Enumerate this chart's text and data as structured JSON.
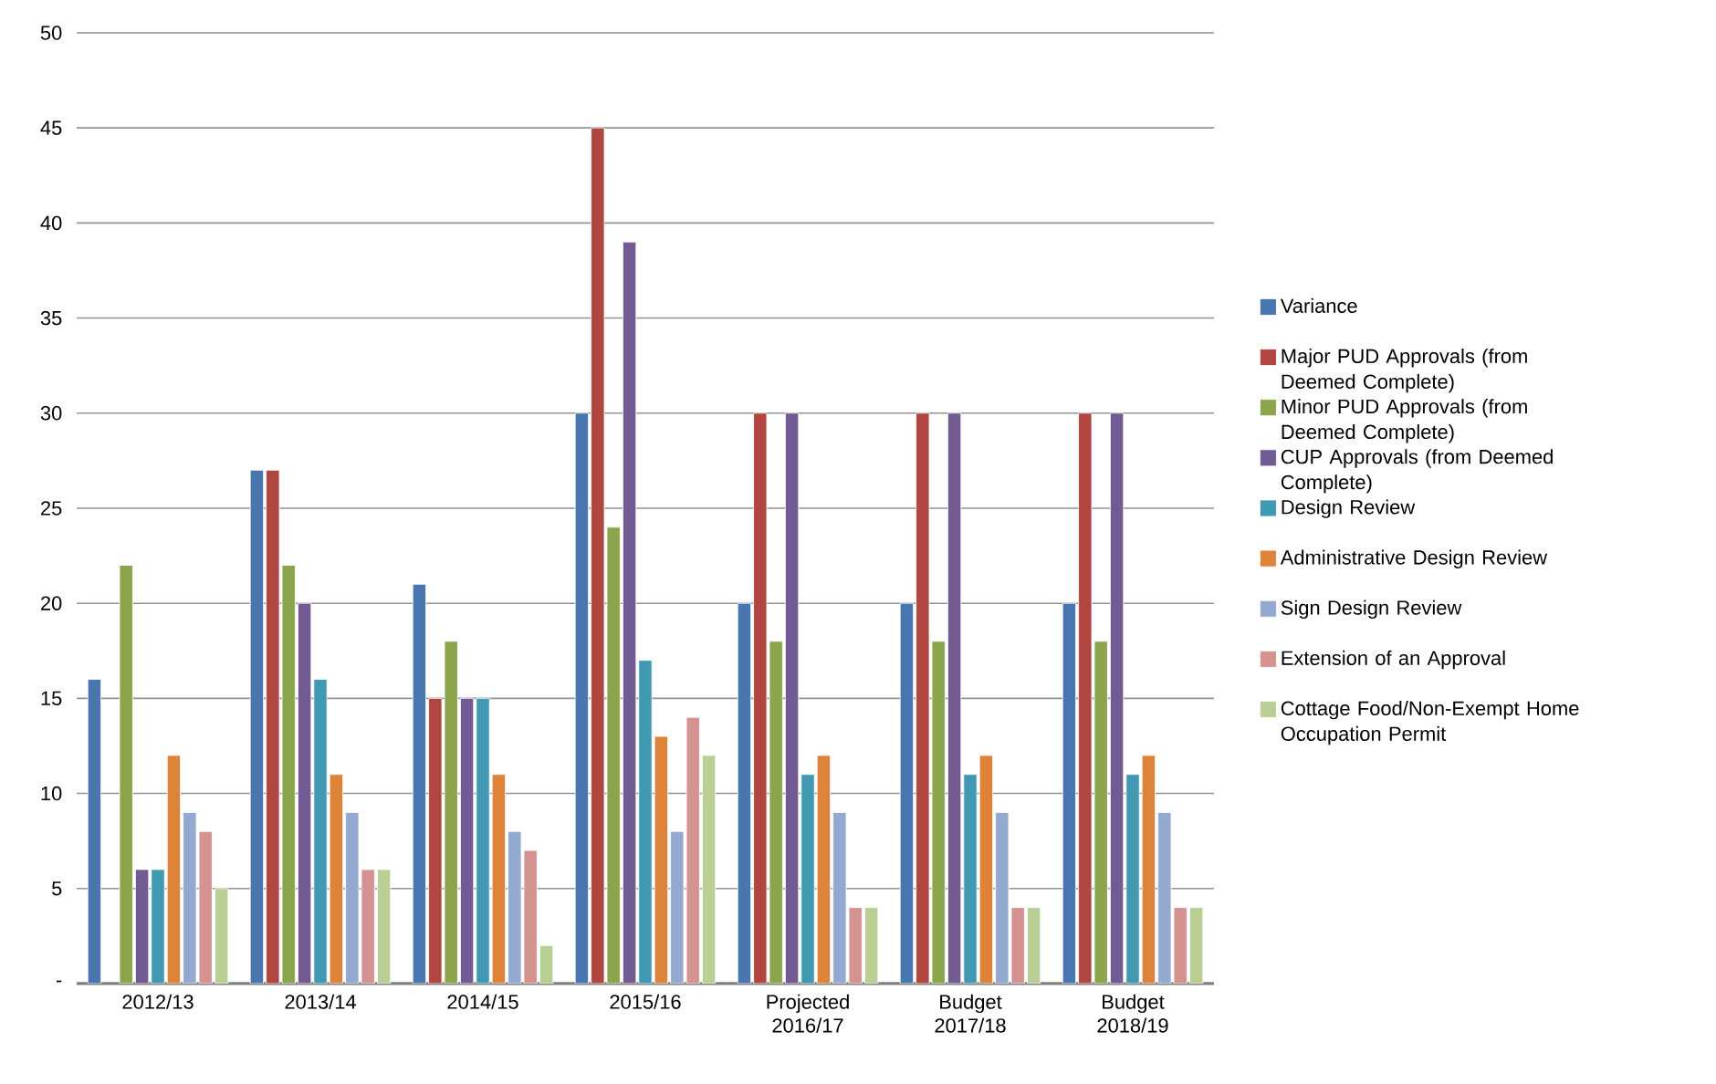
{
  "chart_data": {
    "type": "bar",
    "categories": [
      "2012/13",
      "2013/14",
      "2014/15",
      "2015/16",
      "Projected 2016/17",
      "Budget 2017/18",
      "Budget 2018/19"
    ],
    "series": [
      {
        "name": "Variance",
        "color": "#4a76b0",
        "values": [
          16,
          27,
          21,
          30,
          20,
          20,
          20
        ]
      },
      {
        "name": "Major PUD Approvals (from Deemed Complete)",
        "color": "#b0463f",
        "values": [
          null,
          27,
          15,
          45,
          30,
          30,
          30
        ]
      },
      {
        "name": "Minor PUD Approvals (from Deemed Complete)",
        "color": "#8ca54c",
        "values": [
          22,
          22,
          18,
          24,
          18,
          18,
          18
        ]
      },
      {
        "name": "CUP Approvals (from Deemed Complete)",
        "color": "#725a92",
        "values": [
          6,
          20,
          15,
          39,
          30,
          30,
          30
        ]
      },
      {
        "name": "Design Review",
        "color": "#4099b0",
        "values": [
          6,
          16,
          15,
          17,
          11,
          11,
          11
        ]
      },
      {
        "name": "Administrative Design Review",
        "color": "#dd843a",
        "values": [
          12,
          11,
          11,
          13,
          12,
          12,
          12
        ]
      },
      {
        "name": "Sign Design Review",
        "color": "#93a9d0",
        "values": [
          9,
          9,
          8,
          8,
          9,
          9,
          9
        ]
      },
      {
        "name": "Extension of an Approval",
        "color": "#d49391",
        "values": [
          8,
          6,
          7,
          14,
          4,
          4,
          4
        ]
      },
      {
        "name": "Cottage Food/Non-Exempt Home Occupation Permit",
        "color": "#b9cf96",
        "values": [
          5,
          6,
          2,
          12,
          4,
          4,
          4
        ]
      }
    ],
    "ylim": [
      0,
      50
    ],
    "yticks": [
      {
        "value": 0,
        "label": "-"
      },
      5,
      10,
      15,
      20,
      25,
      30,
      35,
      40,
      45,
      50
    ],
    "grid": "y",
    "legend": "right"
  }
}
